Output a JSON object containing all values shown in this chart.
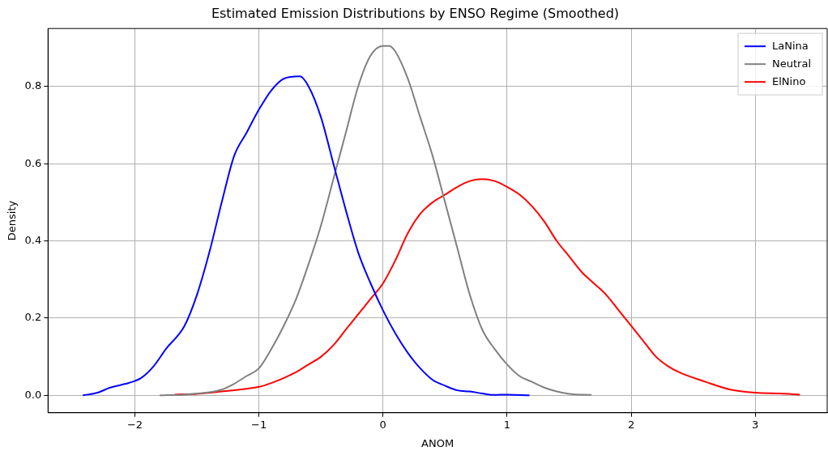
{
  "chart_data": {
    "type": "line",
    "title": "Estimated Emission Distributions by ENSO Regime (Smoothed)",
    "xlabel": "ANOM",
    "ylabel": "Density",
    "xlim": [
      -2.7,
      3.58
    ],
    "ylim": [
      -0.045,
      0.95
    ],
    "xticks": [
      {
        "value": -2,
        "label": "−2"
      },
      {
        "value": -1,
        "label": "−1"
      },
      0,
      1,
      2,
      3
    ],
    "yticks": [
      {
        "value": 0,
        "label": "0.0"
      },
      {
        "value": 0.2,
        "label": "0.2"
      },
      {
        "value": 0.4,
        "label": "0.4"
      },
      {
        "value": 0.6,
        "label": "0.6"
      },
      {
        "value": 0.8,
        "label": "0.8"
      }
    ],
    "grid": true,
    "legend": "top right",
    "marker": "none",
    "line_style": "solid",
    "series": [
      {
        "name": "LaNina",
        "color": "#0000ff",
        "x": [
          -2.42,
          -2.3,
          -2.2,
          -2.05,
          -1.95,
          -1.85,
          -1.75,
          -1.6,
          -1.5,
          -1.4,
          -1.3,
          -1.2,
          -1.1,
          -1.0,
          -0.9,
          -0.8,
          -0.67,
          -0.6,
          -0.5,
          -0.4,
          -0.3,
          -0.2,
          -0.1,
          0,
          0.1,
          0.2,
          0.3,
          0.4,
          0.5,
          0.6,
          0.7,
          0.8,
          0.9,
          1.0,
          1.18
        ],
        "values": [
          0.0,
          0.007,
          0.02,
          0.032,
          0.045,
          0.075,
          0.12,
          0.18,
          0.26,
          0.37,
          0.5,
          0.62,
          0.68,
          0.74,
          0.79,
          0.82,
          0.826,
          0.8,
          0.72,
          0.6,
          0.48,
          0.37,
          0.29,
          0.22,
          0.16,
          0.11,
          0.07,
          0.04,
          0.025,
          0.013,
          0.01,
          0.005,
          0.001,
          0.002,
          0.0
        ]
      },
      {
        "name": "Neutral",
        "color": "#808080",
        "x": [
          -1.8,
          -1.6,
          -1.4,
          -1.3,
          -1.2,
          -1.1,
          -1.0,
          -0.9,
          -0.8,
          -0.7,
          -0.6,
          -0.5,
          -0.4,
          -0.3,
          -0.2,
          -0.1,
          0,
          0.05,
          0.1,
          0.2,
          0.3,
          0.4,
          0.5,
          0.6,
          0.7,
          0.8,
          0.9,
          1.0,
          1.1,
          1.2,
          1.3,
          1.4,
          1.5,
          1.68
        ],
        "values": [
          0.0,
          0.002,
          0.008,
          0.015,
          0.03,
          0.05,
          0.07,
          0.12,
          0.18,
          0.25,
          0.34,
          0.44,
          0.56,
          0.68,
          0.8,
          0.88,
          0.905,
          0.905,
          0.89,
          0.82,
          0.72,
          0.62,
          0.5,
          0.38,
          0.26,
          0.17,
          0.12,
          0.08,
          0.05,
          0.035,
          0.02,
          0.01,
          0.004,
          0.001
        ]
      },
      {
        "name": "ElNino",
        "color": "#ff0000",
        "x": [
          -1.68,
          -1.5,
          -1.3,
          -1.1,
          -1.0,
          -0.9,
          -0.8,
          -0.7,
          -0.6,
          -0.5,
          -0.4,
          -0.3,
          -0.2,
          -0.1,
          0,
          0.1,
          0.2,
          0.3,
          0.4,
          0.5,
          0.6,
          0.7,
          0.8,
          0.9,
          1.0,
          1.1,
          1.2,
          1.3,
          1.4,
          1.5,
          1.6,
          1.7,
          1.8,
          1.9,
          2.0,
          2.1,
          2.2,
          2.3,
          2.4,
          2.6,
          2.8,
          3.0,
          3.2,
          3.36
        ],
        "values": [
          0.002,
          0.004,
          0.01,
          0.017,
          0.022,
          0.032,
          0.045,
          0.06,
          0.08,
          0.1,
          0.13,
          0.17,
          0.21,
          0.25,
          0.29,
          0.35,
          0.42,
          0.47,
          0.5,
          0.52,
          0.54,
          0.555,
          0.56,
          0.555,
          0.54,
          0.52,
          0.49,
          0.45,
          0.4,
          0.36,
          0.32,
          0.29,
          0.26,
          0.22,
          0.18,
          0.14,
          0.1,
          0.075,
          0.058,
          0.035,
          0.015,
          0.007,
          0.005,
          0.002
        ]
      }
    ]
  }
}
